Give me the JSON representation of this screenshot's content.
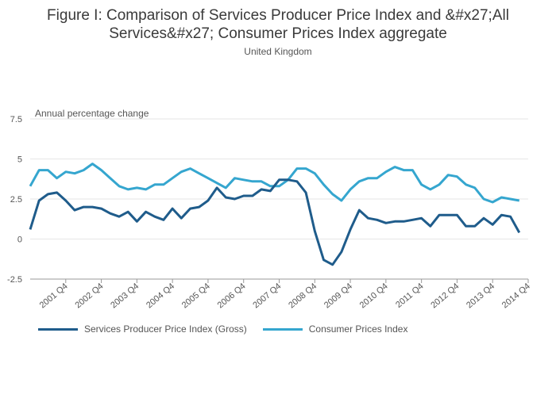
{
  "colors": {
    "sppi": "#1f5c8b",
    "cpi": "#35a6cf",
    "grid": "#e6e6e6",
    "axis": "#999999"
  },
  "chart_data": {
    "type": "line",
    "title_line1": "Figure I: Comparison of Services Producer Price Index and &#x27;All",
    "title_line2": "Services&#x27; Consumer Prices Index aggregate",
    "subtitle": "United Kingdom",
    "ylabel": "Annual percentage change",
    "ylim": [
      -2.5,
      7.5
    ],
    "yticks": [
      "7.5",
      "5",
      "2.5",
      "0",
      "-2.5"
    ],
    "ytick_values": [
      7.5,
      5,
      2.5,
      0,
      -2.5
    ],
    "x": [
      "2000 Q4",
      "2001 Q1",
      "2001 Q2",
      "2001 Q3",
      "2001 Q4",
      "2002 Q1",
      "2002 Q2",
      "2002 Q3",
      "2002 Q4",
      "2003 Q1",
      "2003 Q2",
      "2003 Q3",
      "2003 Q4",
      "2004 Q1",
      "2004 Q2",
      "2004 Q3",
      "2004 Q4",
      "2005 Q1",
      "2005 Q2",
      "2005 Q3",
      "2005 Q4",
      "2006 Q1",
      "2006 Q2",
      "2006 Q3",
      "2006 Q4",
      "2007 Q1",
      "2007 Q2",
      "2007 Q3",
      "2007 Q4",
      "2008 Q1",
      "2008 Q2",
      "2008 Q3",
      "2008 Q4",
      "2009 Q1",
      "2009 Q2",
      "2009 Q3",
      "2009 Q4",
      "2010 Q1",
      "2010 Q2",
      "2010 Q3",
      "2010 Q4",
      "2011 Q1",
      "2011 Q2",
      "2011 Q3",
      "2011 Q4",
      "2012 Q1",
      "2012 Q2",
      "2012 Q3",
      "2012 Q4",
      "2013 Q1",
      "2013 Q2",
      "2013 Q3",
      "2013 Q4",
      "2014 Q1",
      "2014 Q2",
      "2014 Q3",
      "2014 Q4"
    ],
    "xticks": [
      "2001 Q4",
      "2002 Q4",
      "2003 Q4",
      "2004 Q4",
      "2005 Q4",
      "2006 Q4",
      "2007 Q4",
      "2008 Q4",
      "2009 Q4",
      "2010 Q4",
      "2011 Q4",
      "2012 Q4",
      "2013 Q4",
      "2014 Q4"
    ],
    "series": [
      {
        "name": "Services Producer Price Index (Gross)",
        "values": [
          0.6,
          2.4,
          2.8,
          2.9,
          2.4,
          1.8,
          2.0,
          2.0,
          1.9,
          1.6,
          1.4,
          1.7,
          1.1,
          1.7,
          1.4,
          1.2,
          1.9,
          1.3,
          1.9,
          2.0,
          2.4,
          3.2,
          2.6,
          2.5,
          2.7,
          2.7,
          3.1,
          3.0,
          3.7,
          3.7,
          3.6,
          2.9,
          0.5,
          -1.3,
          -1.6,
          -0.8,
          0.6,
          1.8,
          1.3,
          1.2,
          1.0,
          1.1,
          1.1,
          1.2,
          1.3,
          0.8,
          1.5,
          1.5,
          1.5,
          0.8,
          0.8,
          1.3,
          0.9,
          1.5,
          1.4,
          0.4,
          null
        ]
      },
      {
        "name": "Consumer Prices Index",
        "values": [
          3.3,
          4.3,
          4.3,
          3.8,
          4.2,
          4.1,
          4.3,
          4.7,
          4.3,
          3.8,
          3.3,
          3.1,
          3.2,
          3.1,
          3.4,
          3.4,
          3.8,
          4.2,
          4.4,
          4.1,
          3.8,
          3.5,
          3.2,
          3.8,
          3.7,
          3.6,
          3.6,
          3.3,
          3.3,
          3.7,
          4.4,
          4.4,
          4.1,
          3.4,
          2.8,
          2.4,
          3.1,
          3.6,
          3.8,
          3.8,
          4.2,
          4.5,
          4.3,
          4.3,
          3.4,
          3.1,
          3.4,
          4.0,
          3.9,
          3.4,
          3.2,
          2.5,
          2.3,
          2.6,
          2.5,
          2.4,
          null
        ]
      }
    ],
    "legend": "bottom-left",
    "grid": true
  }
}
